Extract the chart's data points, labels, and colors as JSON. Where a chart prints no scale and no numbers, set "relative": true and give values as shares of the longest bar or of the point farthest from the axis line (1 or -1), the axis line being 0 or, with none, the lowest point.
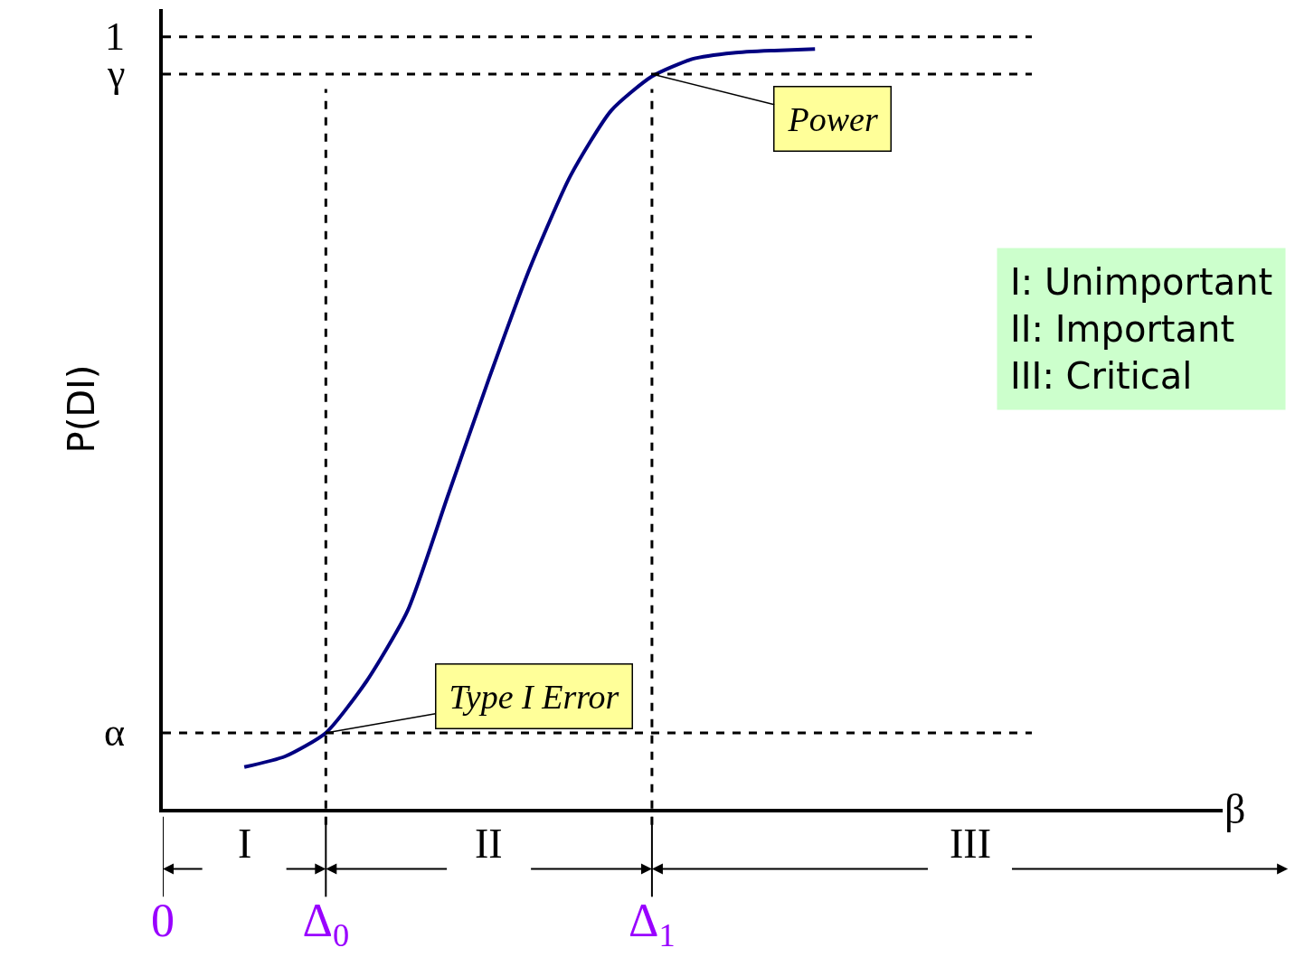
{
  "chart_data": {
    "type": "line",
    "relative": true,
    "xlabel": "β",
    "ylabel": "P(DI)",
    "color": "#000080",
    "categories": [
      "0",
      null,
      null,
      null,
      "Δ$_{0}$",
      null,
      null,
      null,
      null,
      null,
      null,
      null,
      "Δ$_{1}$",
      null,
      null,
      null,
      null,
      null,
      null,
      null,
      null,
      null,
      null,
      null,
      null,
      null,
      null
    ],
    "values": [
      null,
      null,
      0.055,
      0.069,
      0.1,
      0.168,
      0.26,
      0.413,
      0.566,
      0.711,
      0.833,
      0.919,
      0.964,
      0.987,
      0.995,
      0.998,
      1.0,
      null,
      null,
      null,
      null,
      null,
      null,
      null,
      null,
      null,
      null
    ],
    "grid": false,
    "legend": false,
    "marker": "none",
    "line_style": "solid",
    "ref_lines": [
      {
        "axis": "y",
        "value": 1.016,
        "label": "1",
        "line_style": "dashed"
      },
      {
        "axis": "y",
        "value": 0.967,
        "label": "γ",
        "line_style": "dashed"
      },
      {
        "axis": "y",
        "value": 0.1,
        "label": "α",
        "line_style": "dashed"
      },
      {
        "axis": "x",
        "value": "Δ$_{0}$",
        "label": null,
        "line_style": "dashed"
      },
      {
        "axis": "x",
        "value": "Δ$_{1}$",
        "label": null,
        "line_style": "dashed"
      }
    ],
    "annotations": [
      "I",
      "II",
      "III",
      {
        "text": "Power",
        "x": "Δ$_{1}$",
        "y": 0.967
      },
      {
        "text": "Type I Error",
        "x": "Δ$_{0}$",
        "y": 0.1
      },
      "I: Unimportant\nII: Important\nIII: Critical"
    ]
  }
}
